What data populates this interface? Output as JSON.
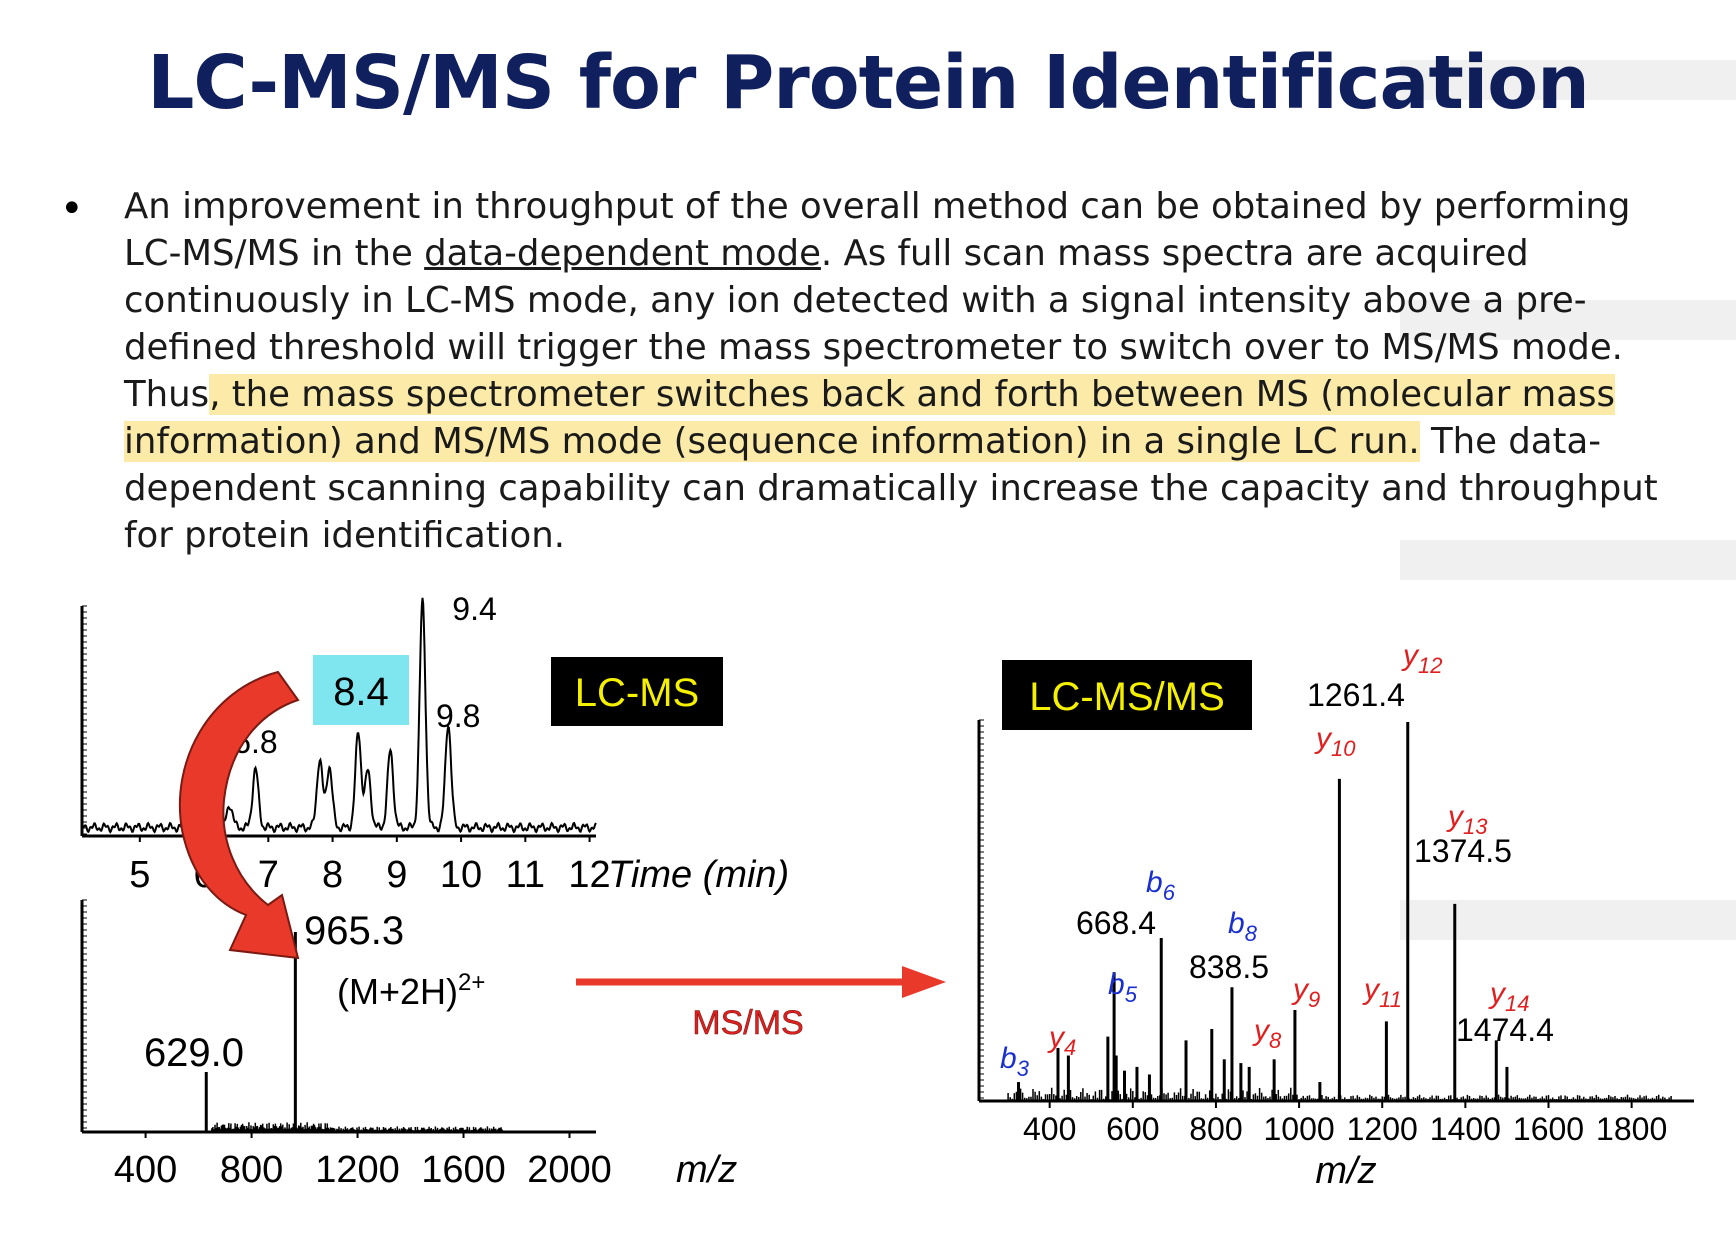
{
  "slide": {
    "title": "LC-MS/MS for Protein Identification",
    "bullet": "•",
    "paragraph": {
      "part1": "An improvement in throughput of the overall method can be obtained by performing LC-MS/MS in the ",
      "underlined": "data-dependent mode",
      "part2": ".  As full scan mass spectra are acquired continuously in LC-MS mode, any ion detected with a signal intensity above a pre-defined threshold will trigger the mass spectrometer to switch over to MS/MS mode. Thus",
      "highlighted": ", the mass spectrometer switches back and forth between MS (molecular mass information) and MS/MS mode (sequence information) in a single LC run.",
      "part3": " The data-dependent scanning capability can dramatically increase the capacity and throughput for protein identification."
    }
  },
  "colors": {
    "title": "#10205e",
    "highlight": "#fbeaa8",
    "arrow": "#e8392a",
    "b_ion": "#1a2fd0",
    "y_ion": "#e02020",
    "badge_bg": "#000000",
    "badge_text": "#f5f000",
    "retention_box": "#7fe6f0"
  },
  "lc_chart": {
    "type": "line",
    "badge": "LC-MS",
    "xlabel": "Time (min)",
    "xticks": [
      "5",
      "6",
      "7",
      "8",
      "9",
      "10",
      "11",
      "12"
    ],
    "xlim": [
      4.1,
      12.1
    ],
    "peaks": [
      {
        "t": 6.4,
        "h": 0.1
      },
      {
        "t": 6.8,
        "h": 0.26,
        "label": "6.8"
      },
      {
        "t": 7.8,
        "h": 0.3
      },
      {
        "t": 7.95,
        "h": 0.27
      },
      {
        "t": 8.4,
        "h": 0.42
      },
      {
        "t": 8.55,
        "h": 0.25
      },
      {
        "t": 8.9,
        "h": 0.34
      },
      {
        "t": 9.4,
        "h": 1.0,
        "label": "9.4"
      },
      {
        "t": 9.8,
        "h": 0.46,
        "label": "9.8"
      }
    ],
    "boxed_label": "8.4"
  },
  "ms_chart": {
    "type": "bar",
    "xlabel": "m/z",
    "xticks": [
      "400",
      "800",
      "1200",
      "1600",
      "2000"
    ],
    "xlim": [
      160,
      2100
    ],
    "peaks": [
      {
        "mz": 629.0,
        "h": 0.3,
        "label": "629.0"
      },
      {
        "mz": 965.3,
        "h": 1.0,
        "label": "965.3"
      }
    ],
    "ion_label": {
      "base": "(M+2H)",
      "charge": "2+"
    }
  },
  "transfer_arrow": {
    "label": "MS/MS"
  },
  "msms_chart": {
    "type": "bar",
    "badge": "LC-MS/MS",
    "xlabel": "m/z",
    "xticks": [
      "400",
      "600",
      "800",
      "1000",
      "1200",
      "1400",
      "1600",
      "1800"
    ],
    "xlim": [
      230,
      1950
    ],
    "peaks": [
      {
        "mz": 325,
        "h": 0.05
      },
      {
        "mz": 420,
        "h": 0.14
      },
      {
        "mz": 445,
        "h": 0.12
      },
      {
        "mz": 540,
        "h": 0.17
      },
      {
        "mz": 555,
        "h": 0.34
      },
      {
        "mz": 560,
        "h": 0.12
      },
      {
        "mz": 580,
        "h": 0.08
      },
      {
        "mz": 610,
        "h": 0.09
      },
      {
        "mz": 640,
        "h": 0.07
      },
      {
        "mz": 668.4,
        "h": 0.43
      },
      {
        "mz": 728,
        "h": 0.16
      },
      {
        "mz": 790,
        "h": 0.19
      },
      {
        "mz": 820,
        "h": 0.11
      },
      {
        "mz": 838.5,
        "h": 0.3
      },
      {
        "mz": 860,
        "h": 0.1
      },
      {
        "mz": 880,
        "h": 0.09
      },
      {
        "mz": 940,
        "h": 0.11
      },
      {
        "mz": 990,
        "h": 0.24
      },
      {
        "mz": 1050,
        "h": 0.05
      },
      {
        "mz": 1097,
        "h": 0.85
      },
      {
        "mz": 1210,
        "h": 0.21
      },
      {
        "mz": 1261.4,
        "h": 1.0
      },
      {
        "mz": 1374.5,
        "h": 0.52
      },
      {
        "mz": 1474.4,
        "h": 0.16
      },
      {
        "mz": 1500,
        "h": 0.09
      }
    ],
    "ion_labels": [
      {
        "ion": "b",
        "sub": "3",
        "series": "b"
      },
      {
        "ion": "y",
        "sub": "4",
        "series": "y"
      },
      {
        "ion": "b",
        "sub": "5",
        "series": "b"
      },
      {
        "ion": "b",
        "sub": "6",
        "series": "b"
      },
      {
        "ion": "b",
        "sub": "8",
        "series": "b"
      },
      {
        "ion": "y",
        "sub": "8",
        "series": "y"
      },
      {
        "ion": "y",
        "sub": "9",
        "series": "y"
      },
      {
        "ion": "y",
        "sub": "10",
        "series": "y"
      },
      {
        "ion": "y",
        "sub": "11",
        "series": "y"
      },
      {
        "ion": "y",
        "sub": "12",
        "series": "y"
      },
      {
        "ion": "y",
        "sub": "13",
        "series": "y"
      },
      {
        "ion": "y",
        "sub": "14",
        "series": "y"
      }
    ],
    "mass_labels": [
      "668.4",
      "838.5",
      "1261.4",
      "1374.5",
      "1474.4"
    ]
  }
}
